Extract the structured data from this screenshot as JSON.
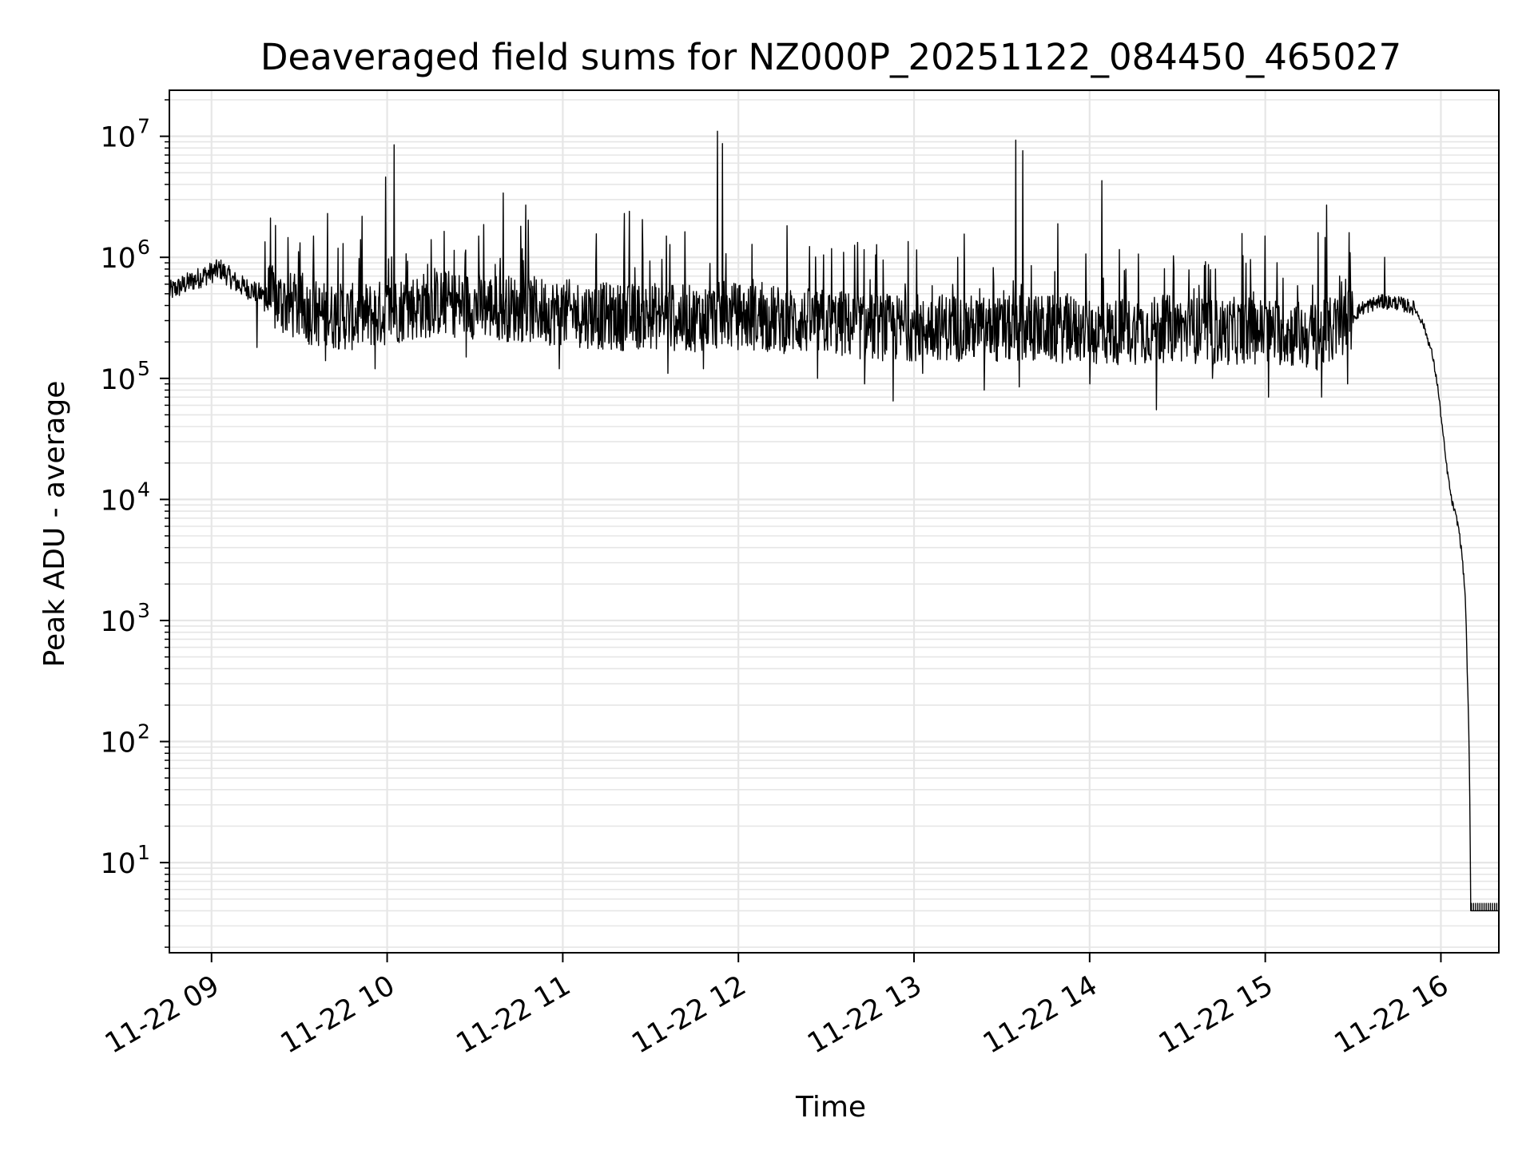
{
  "chart_data": {
    "type": "line",
    "title": "Deaveraged field sums for NZ000P_20251122_084450_465027",
    "xlabel": "Time",
    "ylabel": "Peak ADU - average",
    "yscale": "log",
    "ylim": [
      1.8,
      24000000
    ],
    "xlim_hours": [
      8.76,
      16.33
    ],
    "grid": true,
    "line_color": "#000000",
    "x_ticks": [
      {
        "hour": 9,
        "label": "11-22 09"
      },
      {
        "hour": 10,
        "label": "11-22 10"
      },
      {
        "hour": 11,
        "label": "11-22 11"
      },
      {
        "hour": 12,
        "label": "11-22 12"
      },
      {
        "hour": 13,
        "label": "11-22 13"
      },
      {
        "hour": 14,
        "label": "11-22 14"
      },
      {
        "hour": 15,
        "label": "11-22 15"
      },
      {
        "hour": 16,
        "label": "11-22 16"
      }
    ],
    "y_ticks": [
      {
        "value": 10,
        "base": "10",
        "exp": "1"
      },
      {
        "value": 100,
        "base": "10",
        "exp": "2"
      },
      {
        "value": 1000,
        "base": "10",
        "exp": "3"
      },
      {
        "value": 10000,
        "base": "10",
        "exp": "4"
      },
      {
        "value": 100000,
        "base": "10",
        "exp": "5"
      },
      {
        "value": 1000000,
        "base": "10",
        "exp": "6"
      },
      {
        "value": 10000000,
        "base": "10",
        "exp": "7"
      }
    ],
    "series": [
      {
        "name": "Peak ADU - average",
        "points_hour_value": [
          [
            8.76,
            520000
          ],
          [
            8.85,
            600000
          ],
          [
            8.95,
            700000
          ],
          [
            9.05,
            800000
          ],
          [
            9.15,
            600000
          ],
          [
            9.25,
            520000
          ],
          [
            9.35,
            450000
          ],
          [
            9.45,
            400000
          ],
          [
            9.55,
            360000
          ],
          [
            9.65,
            330000
          ],
          [
            9.8,
            320000
          ],
          [
            9.95,
            340000
          ],
          [
            10.1,
            380000
          ],
          [
            10.3,
            420000
          ],
          [
            10.5,
            400000
          ],
          [
            10.7,
            380000
          ],
          [
            10.9,
            360000
          ],
          [
            11.1,
            340000
          ],
          [
            11.3,
            320000
          ],
          [
            11.5,
            330000
          ],
          [
            11.7,
            310000
          ],
          [
            11.9,
            330000
          ],
          [
            12.1,
            320000
          ],
          [
            12.3,
            300000
          ],
          [
            12.5,
            290000
          ],
          [
            12.7,
            270000
          ],
          [
            12.9,
            260000
          ],
          [
            13.1,
            270000
          ],
          [
            13.3,
            260000
          ],
          [
            13.5,
            250000
          ],
          [
            13.7,
            260000
          ],
          [
            13.9,
            250000
          ],
          [
            14.1,
            240000
          ],
          [
            14.3,
            250000
          ],
          [
            14.5,
            260000
          ],
          [
            14.7,
            240000
          ],
          [
            14.9,
            250000
          ],
          [
            15.1,
            240000
          ],
          [
            15.3,
            220000
          ],
          [
            15.45,
            280000
          ],
          [
            15.55,
            380000
          ],
          [
            15.65,
            430000
          ],
          [
            15.75,
            420000
          ],
          [
            15.85,
            380000
          ],
          [
            15.9,
            280000
          ],
          [
            15.95,
            160000
          ],
          [
            15.98,
            90000
          ],
          [
            16.0,
            50000
          ],
          [
            16.03,
            20000
          ],
          [
            16.06,
            10000
          ],
          [
            16.1,
            6000
          ],
          [
            16.12,
            3500
          ],
          [
            16.14,
            1500
          ],
          [
            16.15,
            400
          ],
          [
            16.16,
            100
          ],
          [
            16.165,
            30
          ],
          [
            16.17,
            4
          ],
          [
            16.33,
            4
          ]
        ],
        "spikes_hour_value": [
          [
            9.58,
            1500000
          ],
          [
            9.66,
            2300000
          ],
          [
            9.75,
            1300000
          ],
          [
            9.85,
            1400000
          ],
          [
            9.99,
            4600000
          ],
          [
            10.04,
            8500000
          ],
          [
            10.25,
            1400000
          ],
          [
            10.52,
            1500000
          ],
          [
            10.66,
            3400000
          ],
          [
            10.79,
            2700000
          ],
          [
            10.98,
            2200000
          ],
          [
            11.35,
            2300000
          ],
          [
            11.38,
            2400000
          ],
          [
            11.59,
            1500000
          ],
          [
            11.88,
            11000000
          ],
          [
            11.91,
            8700000
          ],
          [
            12.6,
            1100000
          ],
          [
            13.25,
            1000000
          ],
          [
            13.58,
            9300000
          ],
          [
            13.62,
            7600000
          ],
          [
            14.07,
            4300000
          ],
          [
            14.7,
            1000000
          ],
          [
            15.0,
            1500000
          ],
          [
            15.3,
            1600000
          ],
          [
            15.35,
            2700000
          ],
          [
            15.68,
            1000000
          ]
        ],
        "dips_hour_value": [
          [
            9.26,
            180000
          ],
          [
            9.65,
            140000
          ],
          [
            9.93,
            120000
          ],
          [
            10.45,
            150000
          ],
          [
            10.98,
            120000
          ],
          [
            11.6,
            110000
          ],
          [
            11.8,
            120000
          ],
          [
            12.45,
            100000
          ],
          [
            12.72,
            90000
          ],
          [
            12.88,
            65000
          ],
          [
            13.05,
            110000
          ],
          [
            13.4,
            80000
          ],
          [
            13.6,
            85000
          ],
          [
            14.0,
            90000
          ],
          [
            14.38,
            55000
          ],
          [
            14.7,
            100000
          ],
          [
            15.02,
            70000
          ],
          [
            15.32,
            70000
          ],
          [
            15.47,
            90000
          ]
        ]
      }
    ]
  }
}
